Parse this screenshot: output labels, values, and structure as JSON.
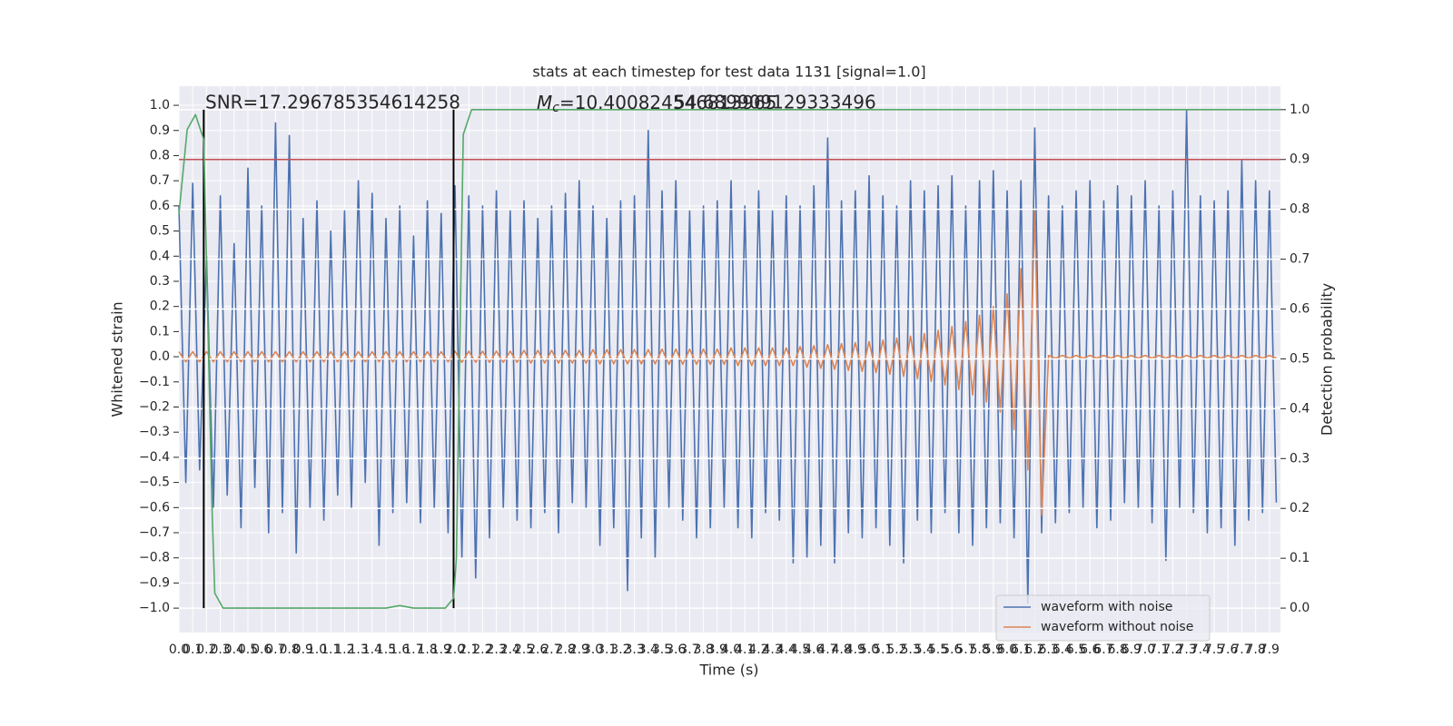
{
  "chart_data": {
    "type": "line",
    "title": "stats at each timestep for test data 1131 [signal=1.0]",
    "xlabel": "Time (s)",
    "ylabel": "Whitened strain",
    "y2label": "Detection probability",
    "annotations": [
      {
        "text": "SNR=17.296785354614258"
      },
      {
        "symbol": "M",
        "subscript": "c",
        "text": "=10.400824546813965"
      },
      {
        "text": "54.689909129333496"
      }
    ],
    "x": [
      0,
      0.05,
      0.1,
      0.15,
      0.2,
      0.25,
      0.3,
      0.35,
      0.4,
      0.45,
      0.5,
      0.55,
      0.6,
      0.65,
      0.7,
      0.75,
      0.8,
      0.85,
      0.9,
      0.95,
      1,
      1.05,
      1.1,
      1.15,
      1.2,
      1.25,
      1.3,
      1.35,
      1.4,
      1.45,
      1.5,
      1.55,
      1.6,
      1.65,
      1.7,
      1.75,
      1.8,
      1.85,
      1.9,
      1.95,
      2,
      2.05,
      2.1,
      2.15,
      2.2,
      2.25,
      2.3,
      2.35,
      2.4,
      2.45,
      2.5,
      2.55,
      2.6,
      2.65,
      2.7,
      2.75,
      2.8,
      2.85,
      2.9,
      2.95,
      3,
      3.05,
      3.1,
      3.15,
      3.2,
      3.25,
      3.3,
      3.35,
      3.4,
      3.45,
      3.5,
      3.55,
      3.6,
      3.65,
      3.7,
      3.75,
      3.8,
      3.85,
      3.9,
      3.95,
      4,
      4.05,
      4.1,
      4.15,
      4.2,
      4.25,
      4.3,
      4.35,
      4.4,
      4.45,
      4.5,
      4.55,
      4.6,
      4.65,
      4.7,
      4.75,
      4.8,
      4.85,
      4.9,
      4.95,
      5,
      5.05,
      5.1,
      5.15,
      5.2,
      5.25,
      5.3,
      5.35,
      5.4,
      5.45,
      5.5,
      5.55,
      5.6,
      5.65,
      5.7,
      5.75,
      5.8,
      5.85,
      5.9,
      5.95,
      6,
      6.05,
      6.1,
      6.15,
      6.2,
      6.25,
      6.3,
      6.35,
      6.4,
      6.45,
      6.5,
      6.55,
      6.6,
      6.65,
      6.7,
      6.75,
      6.8,
      6.85,
      6.9,
      6.95,
      7,
      7.05,
      7.1,
      7.15,
      7.2,
      7.25,
      7.3,
      7.35,
      7.4,
      7.45,
      7.5,
      7.55,
      7.6,
      7.65,
      7.7,
      7.75,
      7.8,
      7.85,
      7.9,
      7.95
    ],
    "series": [
      {
        "name": "waveform with noise",
        "color": "#4c72b0",
        "values": [
          0.6,
          -0.5,
          0.69,
          -0.45,
          0.4,
          -0.6,
          0.64,
          -0.55,
          0.45,
          -0.68,
          0.75,
          -0.52,
          0.6,
          -0.7,
          0.93,
          -0.62,
          0.88,
          -0.78,
          0.55,
          -0.6,
          0.62,
          -0.65,
          0.5,
          -0.55,
          0.58,
          -0.6,
          0.7,
          -0.5,
          0.65,
          -0.75,
          0.55,
          -0.62,
          0.6,
          -0.58,
          0.48,
          -0.66,
          0.62,
          -0.6,
          0.57,
          -0.7,
          0.68,
          -0.8,
          0.64,
          -0.88,
          0.6,
          -0.72,
          0.66,
          -0.6,
          0.58,
          -0.65,
          0.62,
          -0.68,
          0.55,
          -0.62,
          0.6,
          -0.7,
          0.65,
          -0.58,
          0.7,
          -0.6,
          0.6,
          -0.75,
          0.55,
          -0.68,
          0.62,
          -0.93,
          0.64,
          -0.72,
          0.9,
          -0.8,
          0.66,
          -0.6,
          0.7,
          -0.65,
          0.58,
          -0.72,
          0.6,
          -0.68,
          0.62,
          -0.6,
          0.7,
          -0.68,
          0.6,
          -0.72,
          0.66,
          -0.62,
          0.58,
          -0.65,
          0.64,
          -0.82,
          0.6,
          -0.8,
          0.68,
          -0.75,
          0.87,
          -0.82,
          0.62,
          -0.7,
          0.66,
          -0.72,
          0.72,
          -0.68,
          0.64,
          -0.75,
          0.6,
          -0.82,
          0.7,
          -0.65,
          0.66,
          -0.7,
          0.68,
          -0.62,
          0.72,
          -0.7,
          0.6,
          -0.75,
          0.7,
          -0.68,
          0.74,
          -0.66,
          0.66,
          -0.72,
          0.7,
          -0.98,
          0.91,
          -0.7,
          0.64,
          -0.66,
          0.6,
          -0.62,
          0.66,
          -0.6,
          0.7,
          -0.68,
          0.62,
          -0.65,
          0.68,
          -0.58,
          0.64,
          -0.6,
          0.7,
          -0.66,
          0.6,
          -0.81,
          0.66,
          -0.6,
          0.98,
          -0.62,
          0.64,
          -0.7,
          0.62,
          -0.68,
          0.66,
          -0.75,
          0.78,
          -0.65,
          0.7,
          -0.62,
          0.66,
          -0.58
        ]
      },
      {
        "name": "waveform without noise",
        "color": "#dd8452",
        "values": [
          0.02,
          -0.02,
          0.02,
          -0.02,
          0.02,
          -0.02,
          0.02,
          -0.02,
          0.02,
          -0.02,
          0.02,
          -0.02,
          0.02,
          -0.02,
          0.02,
          -0.02,
          0.02,
          -0.02,
          0.02,
          -0.02,
          0.02,
          -0.02,
          0.02,
          -0.02,
          0.02,
          -0.02,
          0.02,
          -0.02,
          0.02,
          -0.02,
          0.02,
          -0.02,
          0.02,
          -0.02,
          0.02,
          -0.02,
          0.02,
          -0.02,
          0.02,
          -0.02,
          0.022,
          -0.022,
          0.022,
          -0.022,
          0.022,
          -0.022,
          0.022,
          -0.022,
          0.022,
          -0.022,
          0.025,
          -0.025,
          0.025,
          -0.025,
          0.025,
          -0.025,
          0.025,
          -0.025,
          0.025,
          -0.025,
          0.028,
          -0.028,
          0.028,
          -0.028,
          0.028,
          -0.028,
          0.028,
          -0.028,
          0.028,
          -0.028,
          0.03,
          -0.03,
          0.03,
          -0.03,
          0.03,
          -0.03,
          0.03,
          -0.03,
          0.03,
          -0.03,
          0.035,
          -0.035,
          0.035,
          -0.035,
          0.035,
          -0.035,
          0.035,
          -0.035,
          0.035,
          -0.035,
          0.04,
          -0.042,
          0.044,
          -0.046,
          0.048,
          -0.05,
          0.052,
          -0.054,
          0.056,
          -0.058,
          0.06,
          -0.063,
          0.066,
          -0.07,
          0.074,
          -0.078,
          0.082,
          -0.087,
          0.092,
          -0.098,
          0.105,
          -0.112,
          0.12,
          -0.13,
          0.14,
          -0.152,
          0.165,
          -0.18,
          0.2,
          -0.22,
          0.25,
          -0.29,
          0.35,
          -0.45,
          0.58,
          -0.63,
          0.005,
          -0.005,
          0.005,
          -0.005,
          0.005,
          -0.005,
          0.005,
          -0.005,
          0.005,
          -0.005,
          0.005,
          -0.005,
          0.005,
          -0.005,
          0.005,
          -0.005,
          0.005,
          -0.005,
          0.005,
          -0.005,
          0.005,
          -0.005,
          0.005,
          -0.005,
          0.005,
          -0.005,
          0.005,
          -0.005,
          0.005,
          -0.005,
          0.005,
          -0.005,
          0.005,
          -0.005
        ]
      },
      {
        "color": "#55a868",
        "axis": "y2",
        "x": [
          0,
          0.06,
          0.12,
          0.18,
          0.24,
          0.26,
          0.32,
          1.5,
          1.6,
          1.7,
          1.93,
          1.99,
          2.01,
          2.06,
          2.12,
          7.98
        ],
        "values": [
          0.79,
          0.96,
          0.99,
          0.94,
          0.2,
          0.03,
          0,
          0,
          0.005,
          0,
          0,
          0.02,
          0.1,
          0.95,
          1,
          1
        ]
      }
    ],
    "threshold": {
      "value": 0.9,
      "axis": "y2",
      "color": "#c44e52"
    },
    "vlines": {
      "x": [
        0.18,
        1.99
      ],
      "color": "#000000"
    },
    "xlim": [
      0,
      7.98
    ],
    "ylim": [
      -1.097,
      1.076
    ],
    "y2lim": [
      -0.049,
      1.047
    ],
    "xticks": [
      {
        "value": 0,
        "label": "0.0"
      },
      0.1,
      0.2,
      0.3,
      0.4,
      0.5,
      0.6,
      0.7,
      0.8,
      0.9,
      {
        "value": 1,
        "label": "1.0"
      },
      1.1,
      1.2,
      1.3,
      1.4,
      1.5,
      1.6,
      1.7,
      1.8,
      1.9,
      {
        "value": 2,
        "label": "2.0"
      },
      2.1,
      2.2,
      2.3,
      2.4,
      2.5,
      2.6,
      2.7,
      2.8,
      2.9,
      {
        "value": 3,
        "label": "3.0"
      },
      3.1,
      3.2,
      3.3,
      3.4,
      3.5,
      3.6,
      3.7,
      3.8,
      3.9,
      {
        "value": 4,
        "label": "4.0"
      },
      4.1,
      4.2,
      4.3,
      4.4,
      4.5,
      4.6,
      4.7,
      4.8,
      4.9,
      {
        "value": 5,
        "label": "5.0"
      },
      5.1,
      5.2,
      5.3,
      5.4,
      5.5,
      5.6,
      5.7,
      5.8,
      5.9,
      {
        "value": 6,
        "label": "6.0"
      },
      6.1,
      6.2,
      6.3,
      6.4,
      6.5,
      6.6,
      6.7,
      6.8,
      6.9,
      {
        "value": 7,
        "label": "7.0"
      },
      7.1,
      7.2,
      7.3,
      7.4,
      7.5,
      7.6,
      7.7,
      7.8,
      7.9
    ],
    "yticks": [
      {
        "value": -1,
        "label": "−1.0"
      },
      {
        "value": -0.9,
        "label": "−0.9"
      },
      {
        "value": -0.8,
        "label": "−0.8"
      },
      {
        "value": -0.7,
        "label": "−0.7"
      },
      {
        "value": -0.6,
        "label": "−0.6"
      },
      {
        "value": -0.5,
        "label": "−0.5"
      },
      {
        "value": -0.4,
        "label": "−0.4"
      },
      {
        "value": -0.3,
        "label": "−0.3"
      },
      {
        "value": -0.2,
        "label": "−0.2"
      },
      {
        "value": -0.1,
        "label": "−0.1"
      },
      {
        "value": 0,
        "label": "0.0"
      },
      0.1,
      0.2,
      0.3,
      0.4,
      0.5,
      0.6,
      0.7,
      0.8,
      0.9,
      {
        "value": 1,
        "label": "1.0"
      }
    ],
    "y2ticks": [
      {
        "value": 0,
        "label": "0.0"
      },
      0.1,
      0.2,
      0.3,
      0.4,
      0.5,
      0.6,
      0.7,
      0.8,
      0.9,
      {
        "value": 1,
        "label": "1.0"
      }
    ],
    "grid": true,
    "legend": "lower right"
  }
}
